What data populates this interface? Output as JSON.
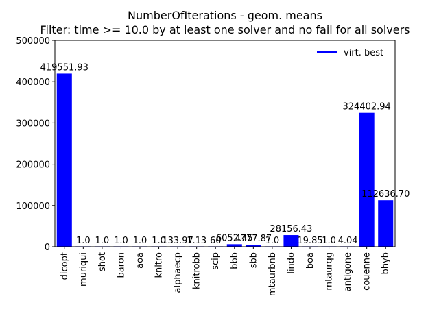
{
  "chart_data": {
    "type": "bar",
    "title": "NumberOfIterations - geom. means",
    "subtitle": "Filter: time >= 10.0 by at least one solver and no fail for all solvers",
    "xlabel": "",
    "ylabel": "",
    "ylim": [
      0,
      500000
    ],
    "yticks": [
      0,
      100000,
      200000,
      300000,
      400000,
      500000
    ],
    "ytick_labels": [
      "0",
      "100000",
      "200000",
      "300000",
      "400000",
      "500000"
    ],
    "grid": false,
    "legend_position": "top-right",
    "bar_color": "#0000ff",
    "series": [
      {
        "name": "virt. best",
        "color": "#0000ff",
        "categories": [
          "dicopt",
          "muriqui",
          "shot",
          "baron",
          "aoa",
          "knitro",
          "alphaecp",
          "knitrobb",
          "scip",
          "bbb",
          "sbb",
          "mtaurbnb",
          "lindo",
          "boa",
          "mtaurqg",
          "antigone",
          "couenne",
          "bhyb"
        ],
        "values": [
          419551.93,
          1.0,
          1.0,
          1.0,
          1.0,
          1.0,
          133.97,
          1.13,
          60.0,
          6052.45,
          4777.87,
          1.0,
          28156.43,
          19.85,
          1.0,
          4.04,
          324402.94,
          112636.7
        ],
        "labels": [
          "419551.93",
          "1.0",
          "1.0",
          "1.0",
          "1.0",
          "1.0",
          "133.97",
          "1.13",
          "60",
          "6052.45",
          "4777.87",
          "1.0",
          "28156.43",
          "19.85",
          "1.0",
          "4.04",
          "324402.94",
          "112636.70"
        ]
      }
    ]
  }
}
